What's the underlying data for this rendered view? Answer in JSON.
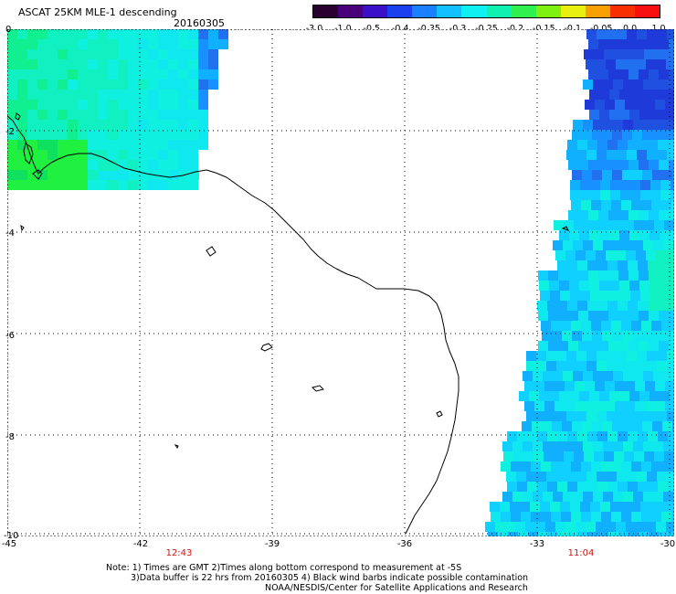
{
  "header": {
    "title": "ASCAT 25KM MLE-1 descending",
    "date": "20160305"
  },
  "colorbar": {
    "labels": [
      "-3.0",
      "-1.0",
      "-0.5",
      "-0.4",
      "-0.35",
      "-0.3",
      "-0.25",
      "-0.2",
      "-0.15",
      "-0.1",
      "-0.05",
      "0.0",
      "1.0"
    ],
    "colors": [
      "#2a0030",
      "#4a007a",
      "#3a10c8",
      "#1a40f0",
      "#1a80ff",
      "#10c0ff",
      "#10f0f0",
      "#10f0b0",
      "#30f050",
      "#80f010",
      "#e8f010",
      "#f8a000",
      "#f83000",
      "#f81010"
    ]
  },
  "axes": {
    "y_ticks": [
      "0",
      "-2",
      "-4",
      "-6",
      "-8",
      "-10"
    ],
    "x_ticks": [
      "-45",
      "-42",
      "-39",
      "-36",
      "-33",
      "-30"
    ]
  },
  "pass_times": [
    "12:43",
    "11:04"
  ],
  "notes": {
    "line1": "Note: 1) Times are GMT 2)Times along bottom correspond to measurement at -5S",
    "line2": "3)Data buffer is 22 hrs from 20160305 4) Black wind barbs indicate possible contamination",
    "line3": "NOAA/NESDIS/Center for Satellite Applications and Research"
  },
  "map": {
    "lon_range": [
      -45,
      -30
    ],
    "lat_range": [
      -10,
      0
    ],
    "coastline_color": "#000000",
    "grid": "dotted"
  }
}
